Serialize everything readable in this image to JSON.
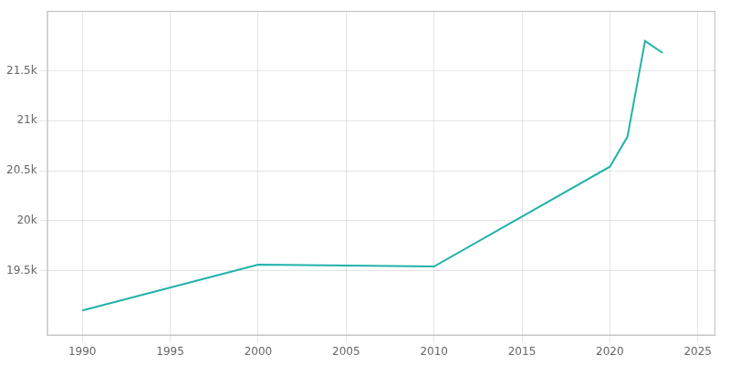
{
  "chart_data": {
    "type": "line",
    "x": [
      1990,
      2000,
      2010,
      2020,
      2021,
      2022,
      2023
    ],
    "values": [
      19100,
      19560,
      19540,
      20540,
      20840,
      21800,
      21680
    ],
    "color": "#20B2AA",
    "xlim": [
      1988,
      2026
    ],
    "xticks": [
      1990,
      1995,
      2000,
      2005,
      2010,
      2015,
      2020,
      2025
    ],
    "ylim": [
      18850,
      22100
    ],
    "yticks": [
      {
        "value": 19500,
        "label": "19.5k"
      },
      {
        "value": 20000,
        "label": "20k"
      },
      {
        "value": 20500,
        "label": "20.5k"
      },
      {
        "value": 21000,
        "label": "21k"
      },
      {
        "value": 21500,
        "label": "21.5k"
      }
    ],
    "grid": true
  }
}
